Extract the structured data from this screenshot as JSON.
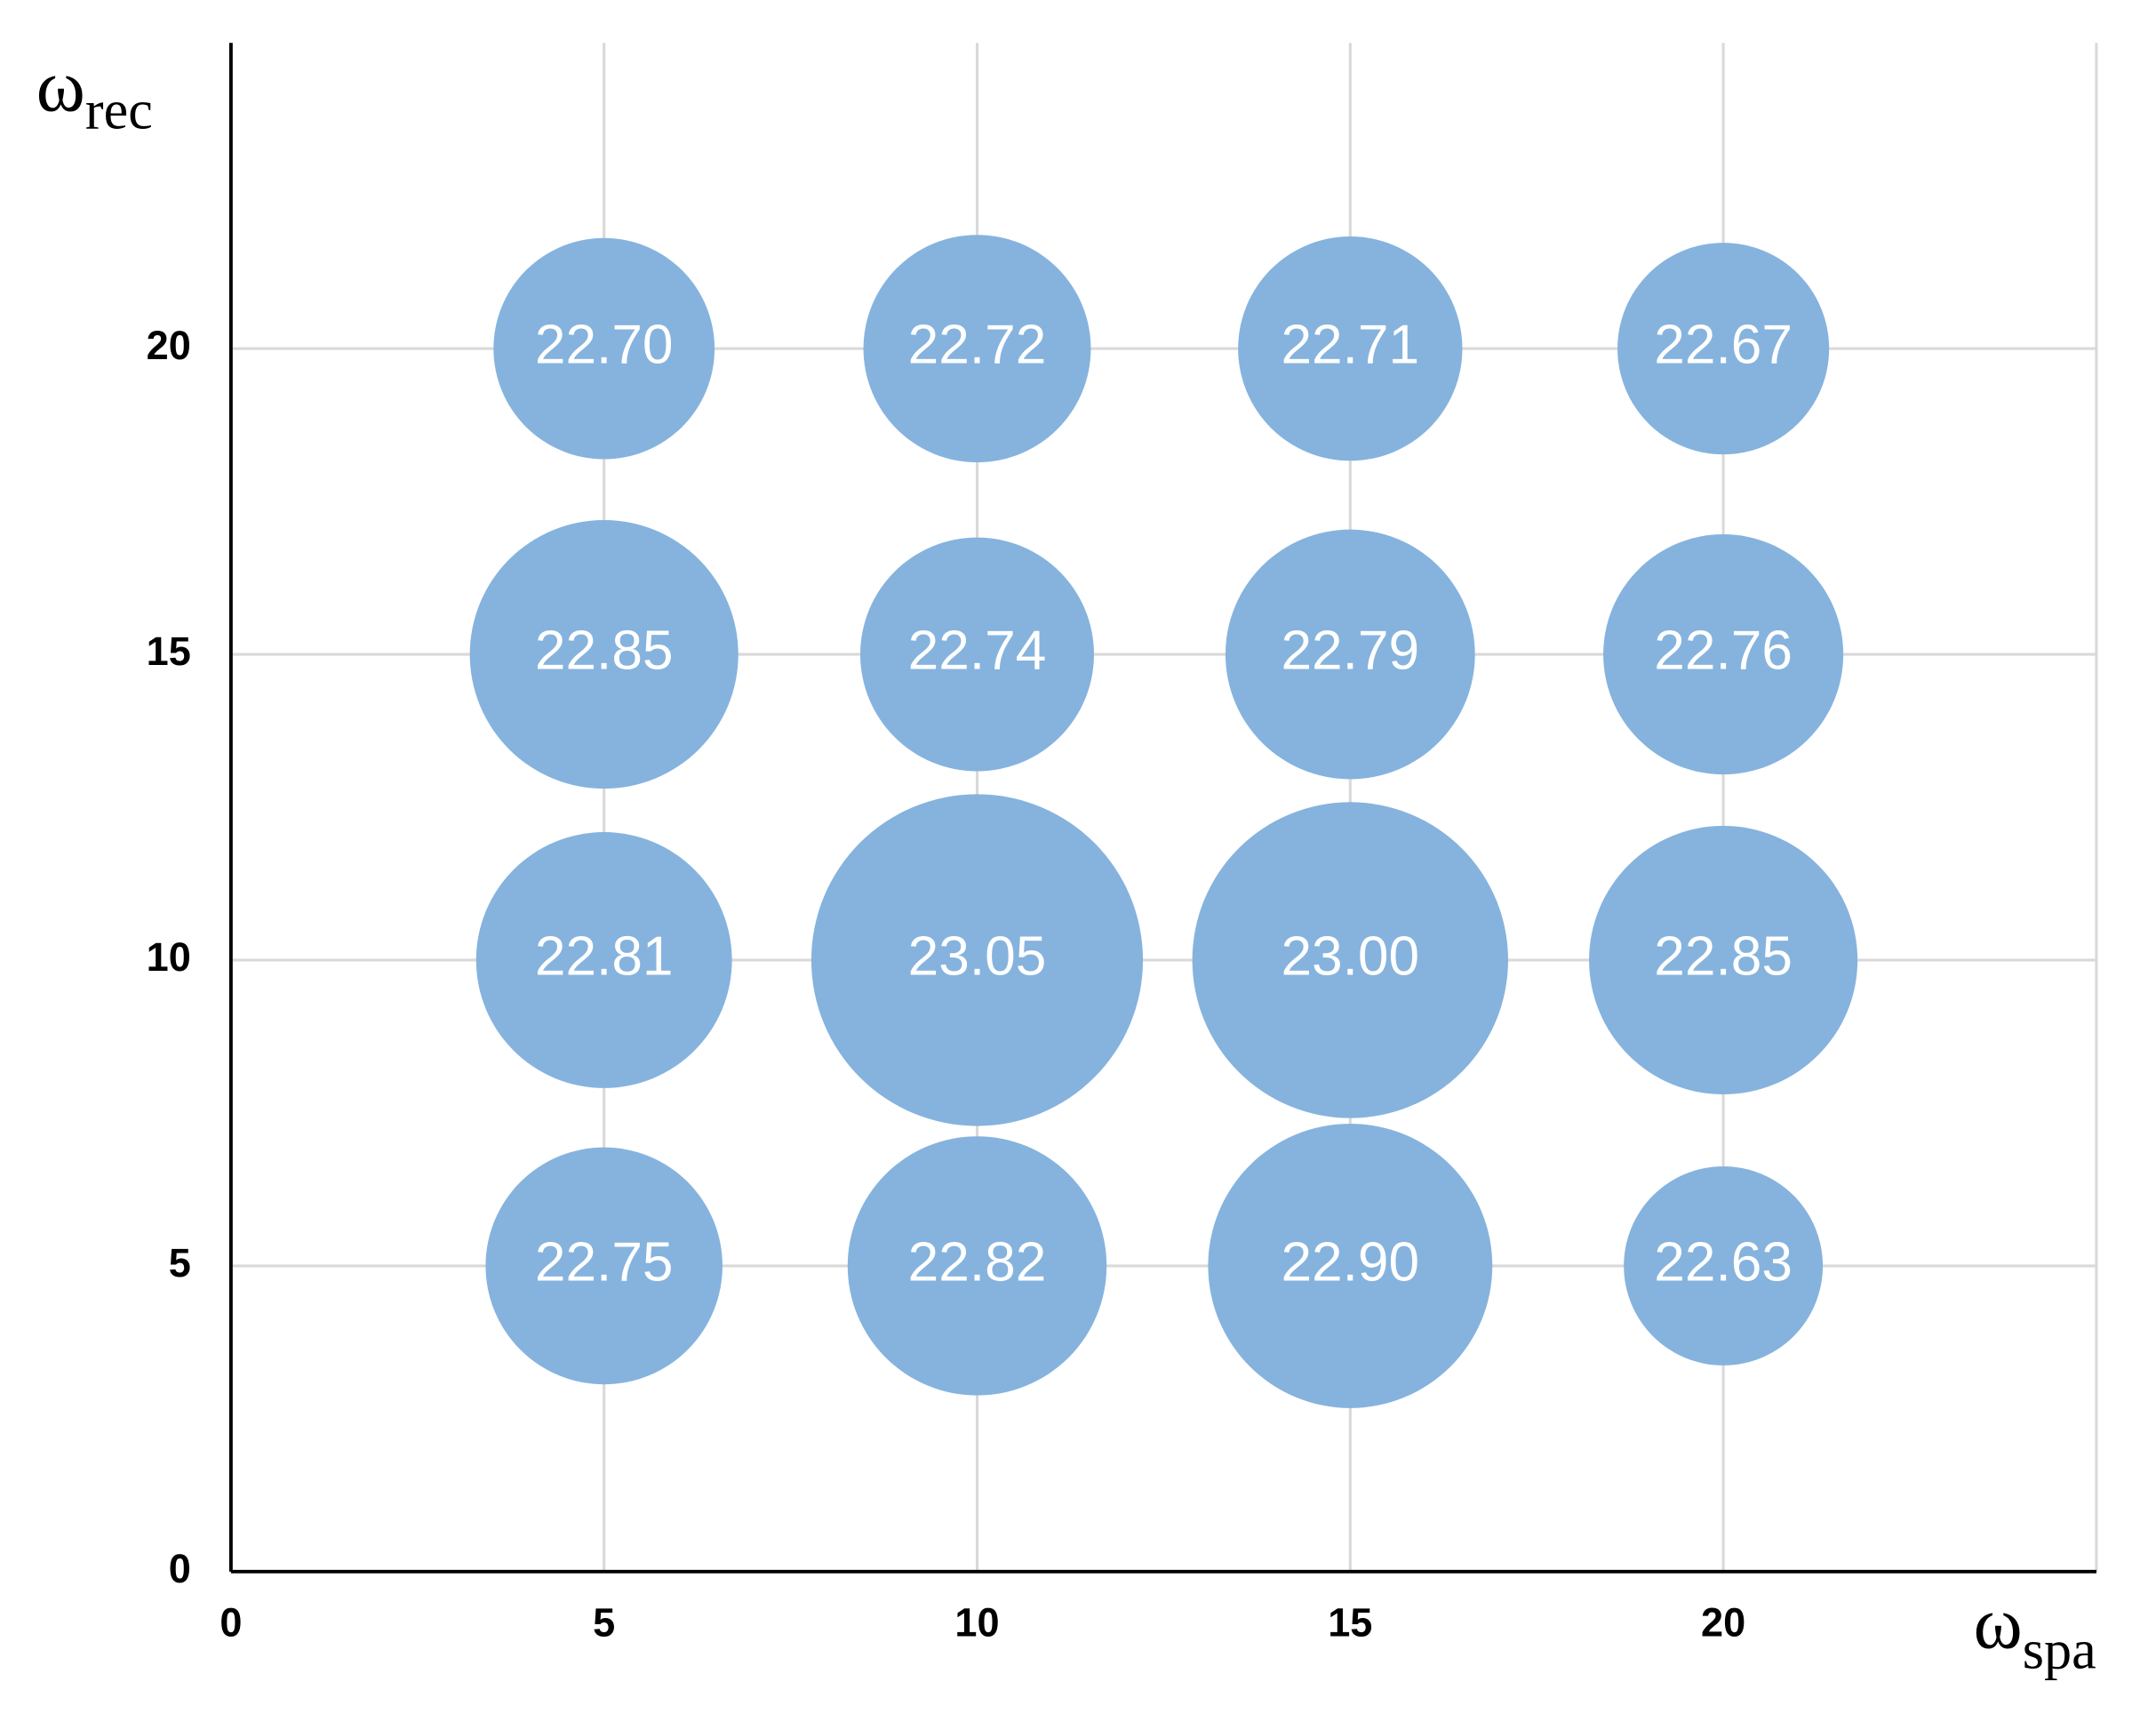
{
  "chart_data": {
    "type": "bubble",
    "xlabel": {
      "main": "ω",
      "sub": "spa"
    },
    "ylabel": {
      "main": "ω",
      "sub": "rec"
    },
    "x": [
      5,
      10,
      15,
      20,
      5,
      10,
      15,
      20,
      5,
      10,
      15,
      20,
      5,
      10,
      15,
      20
    ],
    "y": [
      20,
      20,
      20,
      20,
      15,
      15,
      15,
      15,
      10,
      10,
      10,
      10,
      5,
      5,
      5,
      5
    ],
    "values": [
      22.7,
      22.72,
      22.71,
      22.67,
      22.85,
      22.74,
      22.79,
      22.76,
      22.81,
      23.05,
      23.0,
      22.85,
      22.75,
      22.82,
      22.9,
      22.63
    ],
    "value_labels": [
      "22.70",
      "22.72",
      "22.71",
      "22.67",
      "22.85",
      "22.74",
      "22.79",
      "22.76",
      "22.81",
      "23.05",
      "23.00",
      "22.85",
      "22.75",
      "22.82",
      "22.90",
      "22.63"
    ],
    "color": "#85b3de",
    "xlim": [
      0,
      25
    ],
    "ylim": [
      0,
      25
    ],
    "xticks": [
      0,
      5,
      10,
      15,
      20
    ],
    "yticks": [
      0,
      5,
      10,
      15,
      20
    ],
    "grid": true
  }
}
